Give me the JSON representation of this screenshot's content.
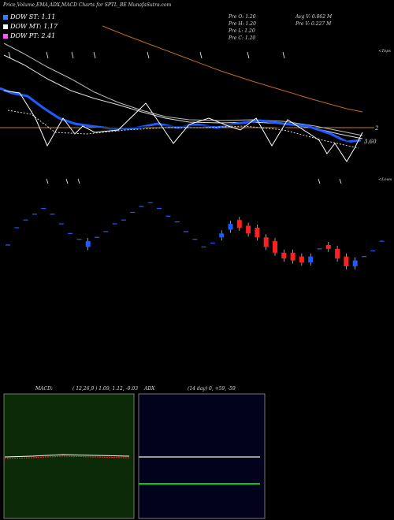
{
  "header": {
    "title": "Price,Volume,EMA,ADX,MACD Charts for SPTL_BE MunafaSutra.com",
    "prev_open": "Pre   O: 1.20",
    "prev_high": "Pre   H: 1.20",
    "prev_low": "Pre   L: 1.20",
    "prev_close": "Pre   C: 1.20",
    "avg_volume": "Avg V: 0.062  M",
    "prev_volume": "Pre   V: 0.227  M"
  },
  "legend": [
    {
      "label": "DOW ST: 1.11",
      "color": "#3a7bff"
    },
    {
      "label": "DOW MT: 1.17",
      "color": "#ffffff"
    },
    {
      "label": "DOW PT: 2.41",
      "color": "#ff55ff"
    }
  ],
  "right_labels": {
    "tops": "<Tops",
    "lows": "<Lows",
    "level_2": "2",
    "level_360": "3.60"
  },
  "macd_panel": {
    "label": "MACD:",
    "params": "( 12,26,9 ) 1.09,  1.12,  -0.03"
  },
  "adx_panel": {
    "label": "ADX",
    "params": "(14  day) 0,  +59,  -59"
  },
  "colors": {
    "bull": "#1e5cff",
    "bear": "#ff2020",
    "ema_long": "#c06a1c",
    "orange_line": "#c87d2a",
    "macd_bg": "#0b2a06",
    "adx_bg": "#02021c",
    "adx_green": "#00d000",
    "adx_grey": "#999999"
  },
  "chart_data": {
    "type": "candlestick",
    "candles": [
      {
        "o": 1.18,
        "c": 1.18
      },
      {
        "o": 1.27,
        "c": 1.27
      },
      {
        "o": 1.31,
        "c": 1.31
      },
      {
        "o": 1.34,
        "c": 1.34
      },
      {
        "o": 1.37,
        "c": 1.37
      },
      {
        "o": 1.34,
        "c": 1.34
      },
      {
        "o": 1.29,
        "c": 1.29
      },
      {
        "o": 1.24,
        "c": 1.24
      },
      {
        "o": 1.21,
        "c": 1.21
      },
      {
        "o": 1.17,
        "c": 1.2
      },
      {
        "o": 1.22,
        "c": 1.22
      },
      {
        "o": 1.25,
        "c": 1.25
      },
      {
        "o": 1.29,
        "c": 1.29
      },
      {
        "o": 1.31,
        "c": 1.31
      },
      {
        "o": 1.35,
        "c": 1.35
      },
      {
        "o": 1.38,
        "c": 1.38
      },
      {
        "o": 1.4,
        "c": 1.4
      },
      {
        "o": 1.37,
        "c": 1.37
      },
      {
        "o": 1.33,
        "c": 1.33
      },
      {
        "o": 1.3,
        "c": 1.3
      },
      {
        "o": 1.25,
        "c": 1.25
      },
      {
        "o": 1.21,
        "c": 1.21
      },
      {
        "o": 1.17,
        "c": 1.17
      },
      {
        "o": 1.19,
        "c": 1.19
      },
      {
        "o": 1.22,
        "c": 1.24
      },
      {
        "o": 1.26,
        "c": 1.29
      },
      {
        "o": 1.31,
        "c": 1.27
      },
      {
        "o": 1.28,
        "c": 1.24
      },
      {
        "o": 1.27,
        "c": 1.22
      },
      {
        "o": 1.22,
        "c": 1.17
      },
      {
        "o": 1.2,
        "c": 1.14
      },
      {
        "o": 1.14,
        "c": 1.11
      },
      {
        "o": 1.14,
        "c": 1.1
      },
      {
        "o": 1.12,
        "c": 1.09
      },
      {
        "o": 1.09,
        "c": 1.12
      },
      {
        "o": 1.16,
        "c": 1.16
      },
      {
        "o": 1.18,
        "c": 1.16
      },
      {
        "o": 1.16,
        "c": 1.11
      },
      {
        "o": 1.12,
        "c": 1.07
      },
      {
        "o": 1.07,
        "c": 1.1
      },
      {
        "o": 1.12,
        "c": 1.12
      },
      {
        "o": 1.15,
        "c": 1.15
      },
      {
        "o": 1.2,
        "c": 1.2
      }
    ],
    "lines": {
      "ema_long": [
        2.45,
        2.44,
        2.43,
        2.41,
        2.39,
        2.37,
        2.35,
        2.32,
        2.28,
        2.25,
        2.21,
        2.17,
        2.13,
        2.1,
        2.06,
        2.02
      ],
      "ema_fast": [
        1.72,
        1.72,
        1.7,
        1.66,
        1.62,
        1.6,
        1.6,
        1.58,
        1.6,
        1.62,
        1.6,
        1.58,
        1.58,
        1.6,
        1.58,
        1.55
      ]
    }
  }
}
